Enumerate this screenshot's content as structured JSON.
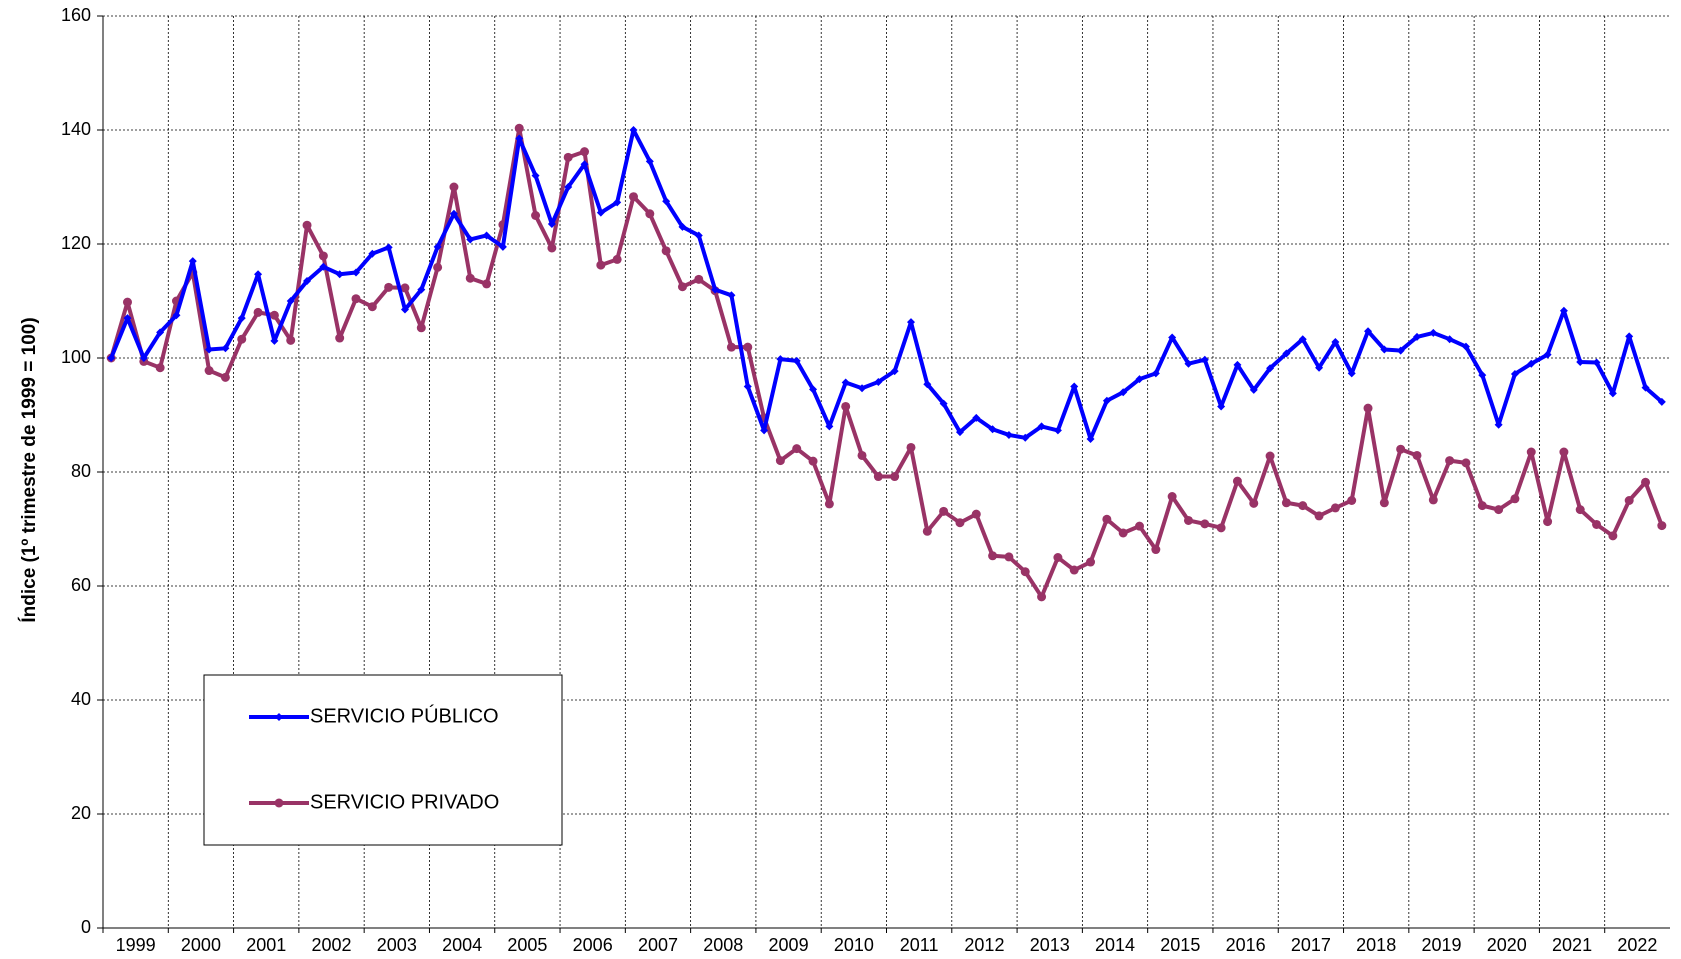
{
  "chart_data": {
    "type": "line",
    "y_label": "Índice (1º trimestre de 1999 = 100)",
    "categories": [
      "1999",
      null,
      null,
      null,
      "2000",
      null,
      null,
      null,
      "2001",
      null,
      null,
      null,
      "2002",
      null,
      null,
      null,
      "2003",
      null,
      null,
      null,
      "2004",
      null,
      null,
      null,
      "2005",
      null,
      null,
      null,
      "2006",
      null,
      null,
      null,
      "2007",
      null,
      null,
      null,
      "2008",
      null,
      null,
      null,
      "2009",
      null,
      null,
      null,
      "2010",
      null,
      null,
      null,
      "2011",
      null,
      null,
      null,
      "2012",
      null,
      null,
      null,
      "2013",
      null,
      null,
      null,
      "2014",
      null,
      null,
      null,
      "2015",
      null,
      null,
      null,
      "2016",
      null,
      null,
      null,
      "2017",
      null,
      null,
      null,
      "2018",
      null,
      null,
      null,
      "2019",
      null,
      null,
      null,
      "2020",
      null,
      null,
      null,
      "2021",
      null,
      null,
      null,
      "2022",
      null,
      null,
      null
    ],
    "series": [
      {
        "name": "SERVICIO PÚBLICO",
        "color": "#0000ff",
        "marker": "diamond",
        "values": [
          100,
          107,
          100,
          104.5,
          107.5,
          117,
          101.5,
          101.7,
          107,
          114.7,
          103,
          110,
          113.5,
          116,
          114.7,
          115,
          118.3,
          119.4,
          108.5,
          112,
          119.5,
          125.3,
          120.8,
          121.5,
          119.5,
          138.5,
          132,
          123.5,
          130,
          134,
          125.5,
          127.3,
          140,
          134.5,
          127.5,
          123,
          121.5,
          112,
          111,
          95,
          87.3,
          99.8,
          99.5,
          94.5,
          88,
          95.7,
          94.7,
          95.8,
          97.7,
          106.3,
          95.4,
          92,
          87,
          89.5,
          87.5,
          86.5,
          86,
          88,
          87.3,
          95,
          85.8,
          92.5,
          94,
          96.3,
          97.3,
          103.6,
          99,
          99.7,
          91.5,
          98.8,
          94.4,
          98.2,
          100.8,
          103.3,
          98.3,
          102.8,
          97.3,
          104.7,
          101.5,
          101.3,
          103.7,
          104.4,
          103.3,
          102,
          97,
          88.3,
          97.2,
          99,
          100.6,
          108.3,
          99.3,
          99.2,
          93.8,
          103.8,
          94.8,
          92.3
        ]
      },
      {
        "name": "SERVICIO PRIVADO",
        "color": "#993366",
        "marker": "circle",
        "values": [
          100,
          109.8,
          99.4,
          98.3,
          110,
          115,
          97.8,
          96.6,
          103.3,
          108,
          107.5,
          103.1,
          123.3,
          117.9,
          103.5,
          110.4,
          109,
          112.4,
          112.3,
          105.3,
          115.9,
          130,
          114,
          113,
          123.4,
          140.3,
          125,
          119.3,
          135.2,
          136.2,
          116.3,
          117.3,
          128.3,
          125.3,
          118.8,
          112.5,
          113.8,
          111.8,
          101.9,
          101.9,
          89.5,
          82,
          84.1,
          81.9,
          74.4,
          91.5,
          82.9,
          79.2,
          79.2,
          84.3,
          69.6,
          73.1,
          71.1,
          72.6,
          65.3,
          65.1,
          62.5,
          58.1,
          65,
          62.8,
          64.2,
          71.7,
          69.3,
          70.5,
          66.4,
          75.7,
          71.5,
          70.9,
          70.2,
          78.4,
          74.5,
          82.8,
          74.6,
          74.1,
          72.3,
          73.7,
          75,
          91.2,
          74.6,
          84,
          82.9,
          75.1,
          82,
          81.6,
          74.1,
          73.4,
          75.3,
          83.5,
          71.3,
          83.5,
          73.4,
          70.8,
          68.8,
          75,
          78.2,
          70.6
        ]
      }
    ],
    "ylim": [
      0,
      160
    ],
    "yticks": [
      0,
      20,
      40,
      60,
      80,
      100,
      120,
      140,
      160
    ],
    "grid": true,
    "legend": "lower left"
  }
}
